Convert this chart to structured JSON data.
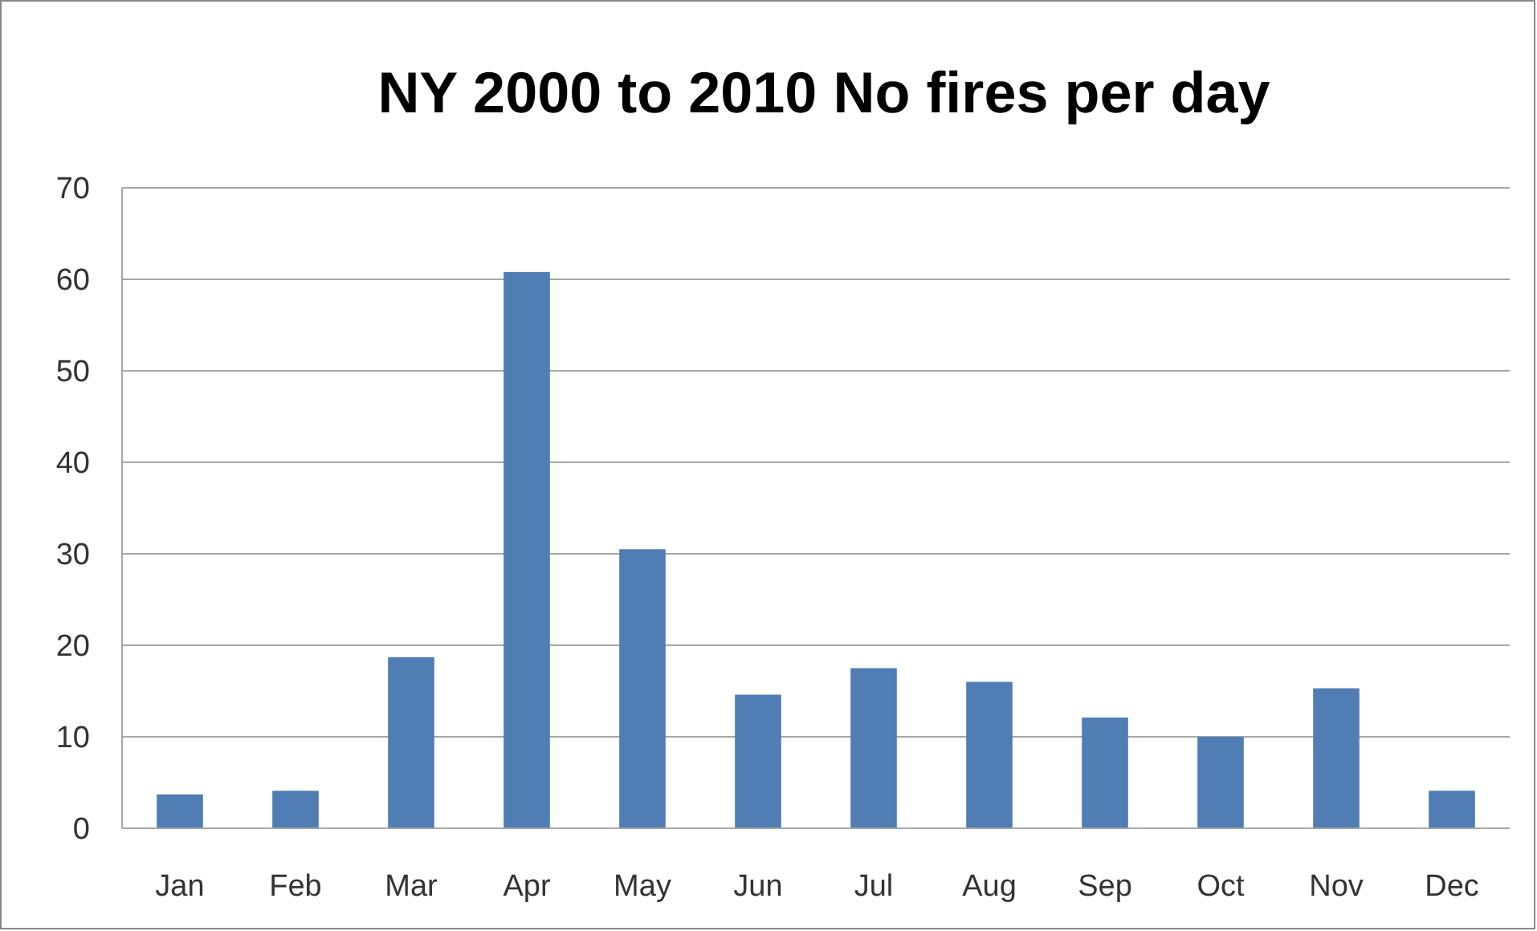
{
  "chart_data": {
    "type": "bar",
    "title": "NY 2000 to 2010 No fires per day",
    "categories": [
      "Jan",
      "Feb",
      "Mar",
      "Apr",
      "May",
      "Jun",
      "Jul",
      "Aug",
      "Sep",
      "Oct",
      "Nov",
      "Dec"
    ],
    "values": [
      3.7,
      4.1,
      18.7,
      60.8,
      30.5,
      14.6,
      17.5,
      16.0,
      12.1,
      10.0,
      15.3,
      4.1
    ],
    "color": "#4f7db4",
    "ylim": [
      0,
      70
    ],
    "yticks": [
      0,
      10,
      20,
      30,
      40,
      50,
      60,
      70
    ],
    "grid": "y"
  }
}
